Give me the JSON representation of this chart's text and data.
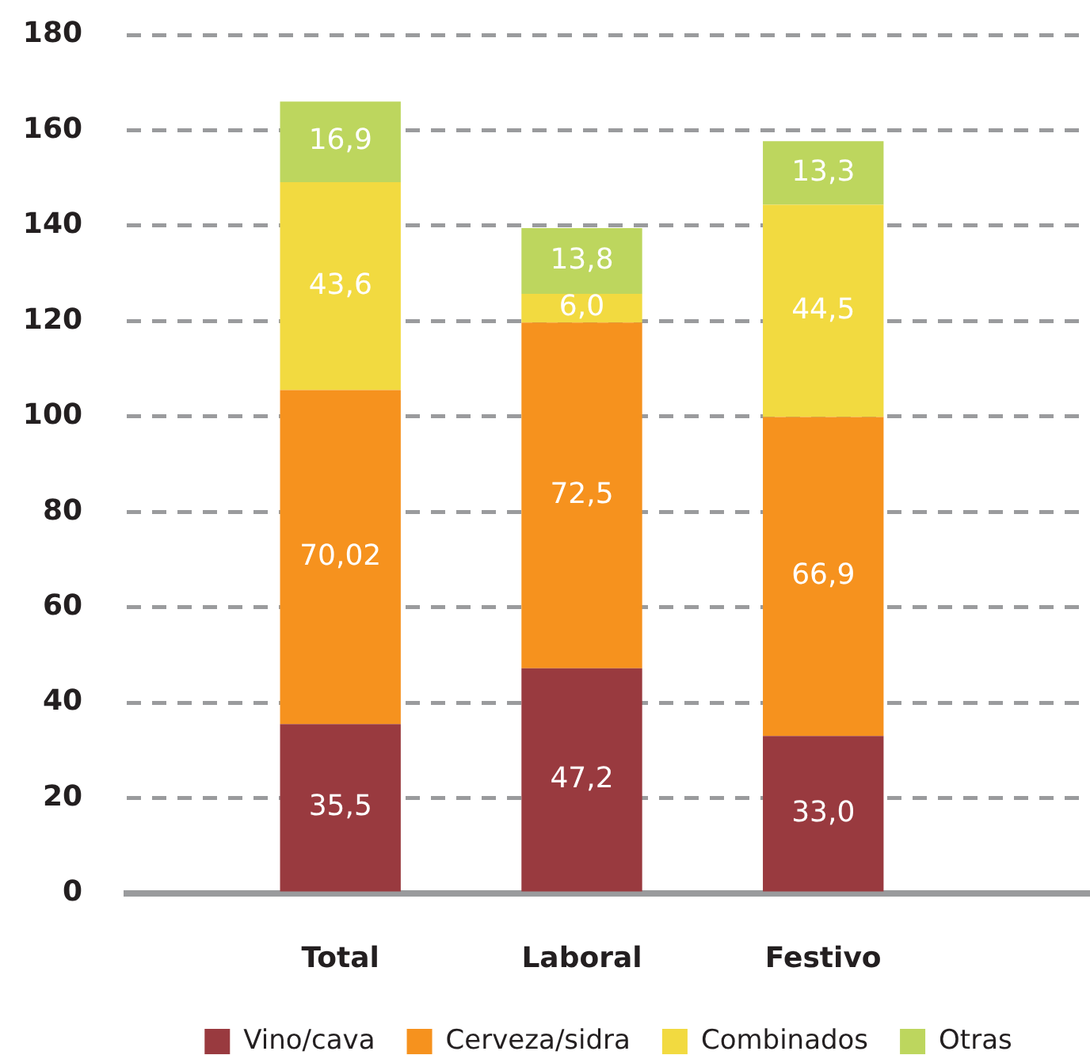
{
  "chart_data": {
    "type": "bar",
    "stacked": true,
    "categories": [
      "Total",
      "Laboral",
      "Festivo"
    ],
    "series": [
      {
        "name": "Vino/cava",
        "color": "#993a3f",
        "values": [
          35.5,
          47.2,
          33.0
        ],
        "value_labels": [
          "35,5",
          "47,2",
          "33,0"
        ]
      },
      {
        "name": "Cerveza/sidra",
        "color": "#f6921e",
        "values": [
          70.02,
          72.5,
          66.9
        ],
        "value_labels": [
          "70,02",
          "72,5",
          "66,9"
        ]
      },
      {
        "name": "Combinados",
        "color": "#f2da40",
        "values": [
          43.6,
          6.0,
          44.5
        ],
        "value_labels": [
          "43,6",
          "6,0",
          "44,5"
        ]
      },
      {
        "name": "Otras",
        "color": "#bdd65e",
        "values": [
          16.9,
          13.8,
          13.3
        ],
        "value_labels": [
          "16,9",
          "13,8",
          "13,3"
        ]
      }
    ],
    "ylim": [
      0,
      180
    ],
    "yticks": [
      0,
      20,
      40,
      60,
      80,
      100,
      120,
      140,
      160,
      180
    ],
    "grid": "y",
    "legend": "bottom"
  }
}
